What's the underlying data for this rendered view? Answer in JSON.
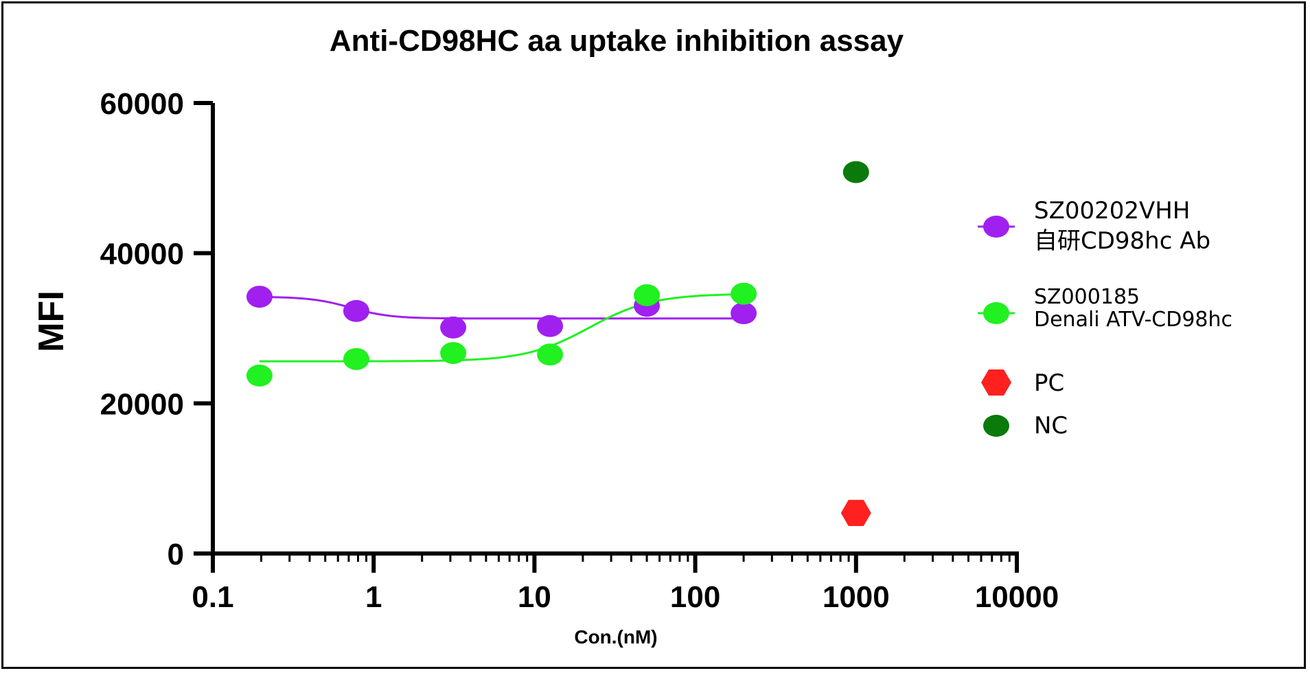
{
  "chart_data": {
    "type": "scatter",
    "title": "Anti-CD98HC aa uptake inhibition assay",
    "xlabel": "Con.(nM)",
    "ylabel": "MFI",
    "xscale": "log",
    "xlim": [
      0.1,
      10000
    ],
    "ylim": [
      0,
      60000
    ],
    "x_ticks": [
      "0.1",
      "1",
      "10",
      "100",
      "1000",
      "10000"
    ],
    "y_ticks": [
      "0",
      "20000",
      "40000",
      "60000"
    ],
    "legend_position": "right",
    "series": [
      {
        "name_line1": "SZ00202VHH",
        "name_line2": "自研CD98hc Ab",
        "color": "#a020f0",
        "marker": "circle",
        "fit": "sigmoid",
        "x": [
          0.195,
          0.78,
          3.125,
          12.5,
          50,
          200
        ],
        "y": [
          34200,
          32300,
          30100,
          30300,
          33000,
          32000
        ],
        "fit_params": {
          "bottom": 31300,
          "top": 34200,
          "ec50": 0.72,
          "hill": -3.5,
          "x_range": [
            0.195,
            200
          ]
        }
      },
      {
        "name_line1": "SZ000185",
        "name_line2": "Denali ATV-CD98hc",
        "color": "#21f021",
        "marker": "circle",
        "fit": "sigmoid",
        "x": [
          0.195,
          0.78,
          3.125,
          12.5,
          50,
          200
        ],
        "y": [
          23700,
          25900,
          26700,
          26500,
          34400,
          34600
        ],
        "fit_params": {
          "bottom": 25600,
          "top": 34600,
          "ec50": 22,
          "hill": 2.2,
          "x_range": [
            0.195,
            200
          ]
        }
      },
      {
        "name_line1": "PC",
        "color": "#ff2020",
        "marker": "hexagon",
        "x": [
          1000
        ],
        "y": [
          5400
        ]
      },
      {
        "name_line1": "NC",
        "color": "#0a7a0a",
        "marker": "circle",
        "x": [
          1000
        ],
        "y": [
          50800
        ]
      }
    ]
  }
}
